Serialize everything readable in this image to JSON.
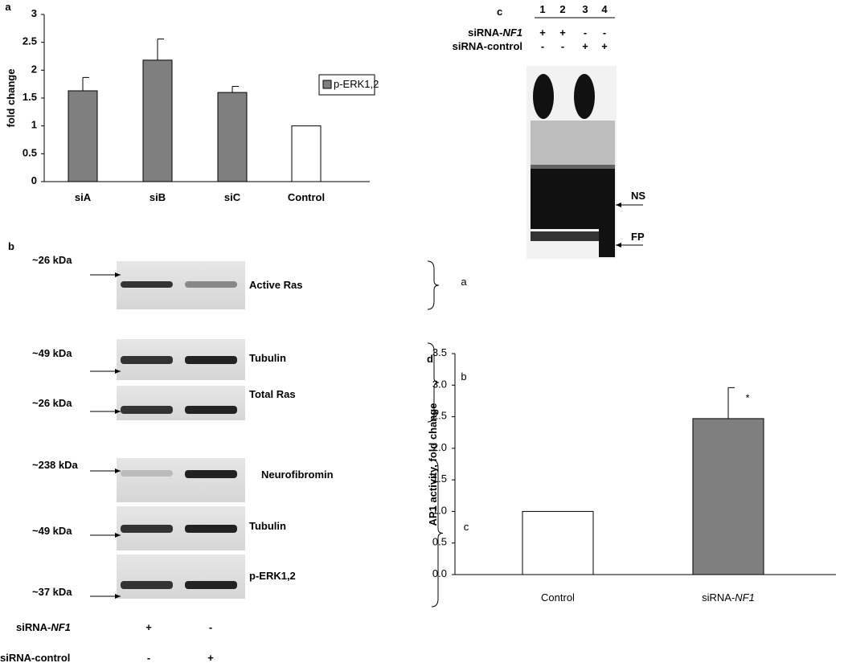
{
  "chart_data": [
    {
      "type": "bar",
      "panel_label": "a",
      "ylabel": "fold change",
      "categories": [
        "siA",
        "siB",
        "siC",
        "Control"
      ],
      "series": [
        {
          "name": "p-ERK1,2",
          "color": "#7f7f7f",
          "values": [
            1.63,
            2.18,
            1.6,
            1.0
          ],
          "errors": [
            0.24,
            0.38,
            0.11,
            null
          ]
        }
      ],
      "bar_colors": [
        "#7f7f7f",
        "#7f7f7f",
        "#7f7f7f",
        "#ffffff"
      ],
      "ylim": [
        0,
        3
      ],
      "yticks": [
        0,
        0.5,
        1,
        1.5,
        2,
        2.5,
        3
      ],
      "grid": false,
      "legend": "right"
    },
    {
      "type": "bar",
      "panel_label": "d",
      "ylabel": "AP1 activity, fold change",
      "categories": [
        "Control",
        "siRNA-NF1"
      ],
      "series": [
        {
          "color": "#7f7f7f",
          "values": [
            1.0,
            2.47
          ],
          "errors": [
            null,
            0.49
          ]
        }
      ],
      "bar_colors": [
        "#ffffff",
        "#7f7f7f"
      ],
      "annotations": [
        {
          "text": "*",
          "category": 1
        }
      ],
      "ylim": [
        0,
        3.5
      ],
      "yticks": [
        {
          "value": 0,
          "label": "0.0"
        },
        0.5,
        {
          "value": 1,
          "label": "1.0"
        },
        1.5,
        {
          "value": 2,
          "label": "2.0"
        },
        2.5,
        {
          "value": 3,
          "label": "3.0"
        },
        3.5
      ],
      "grid": false
    }
  ],
  "panel_b": {
    "label": "b",
    "blots": [
      {
        "marker": "~26 kDa",
        "name": "Active Ras"
      },
      {
        "marker": "~49 kDa",
        "name": "Tubulin"
      },
      {
        "marker": "~26 kDa",
        "name": "Total Ras"
      },
      {
        "marker": "~238 kDa",
        "name": "Neurofibromin"
      },
      {
        "marker": "~49 kDa",
        "name": "Tubulin"
      },
      {
        "marker": "~37 kDa",
        "name": "p-ERK1,2"
      }
    ],
    "groups": [
      "a",
      "b",
      "c"
    ],
    "rows": [
      {
        "label": "siRNA-NF1",
        "signs": [
          "+",
          "-"
        ]
      },
      {
        "label": "siRNA-control",
        "signs": [
          "-",
          "+"
        ]
      }
    ]
  },
  "panel_c": {
    "label": "c",
    "lanes": [
      "1",
      "2",
      "3",
      "4"
    ],
    "rows": [
      {
        "label": "siRNA-NF1",
        "signs": [
          "+",
          "+",
          "-",
          "-"
        ]
      },
      {
        "label": "siRNA-control",
        "signs": [
          "-",
          "-",
          "+",
          "+"
        ]
      }
    ],
    "bands": [
      "NS",
      "FP"
    ]
  }
}
